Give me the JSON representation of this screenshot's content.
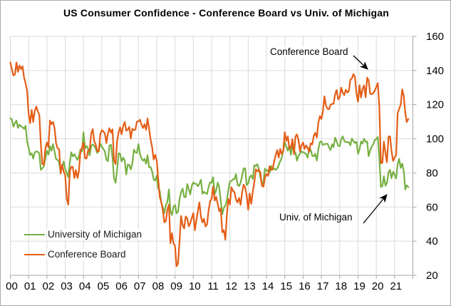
{
  "title": "US Consumer Confidence - Conference Board vs Univ. of Michigan",
  "colors": {
    "umich_green": "#76B042",
    "cb_orange": "#E45D15",
    "gridline": "#D9D9D9",
    "axis": "#A6A6A6",
    "text": "#000000"
  },
  "legend": {
    "position": "inside-lower-left",
    "items": [
      {
        "label": "University of Michigan"
      },
      {
        "label": "Conference Board"
      }
    ]
  },
  "annotations": [
    {
      "text": "Conference Board",
      "points_to": "Conference Board line near 2019 peak"
    },
    {
      "text": "Univ. of Michigan",
      "points_to": "University of Michigan line in 2020"
    }
  ],
  "chart_data": {
    "type": "line",
    "title": "US Consumer Confidence - Conference Board vs Univ. of Michigan",
    "x_frequency": "monthly",
    "x_range": [
      "2000-01",
      "2021-10"
    ],
    "xlabel": "",
    "ylabel": "",
    "xlim": [
      2000,
      2022
    ],
    "ylim": [
      20,
      160
    ],
    "y_ticks": [
      20,
      40,
      60,
      80,
      100,
      120,
      140,
      160
    ],
    "y_axis_side": "right",
    "x_tick_labels": [
      "00",
      "01",
      "02",
      "03",
      "04",
      "05",
      "06",
      "07",
      "08",
      "09",
      "10",
      "11",
      "12",
      "13",
      "14",
      "15",
      "16",
      "17",
      "18",
      "19",
      "20",
      "21"
    ],
    "grid": true,
    "legend_position": "inside-lower-left",
    "series": [
      {
        "name": "University of Michigan",
        "color": "#76B042",
        "values": [
          112,
          111.3,
          107.1,
          109.2,
          110.7,
          106.4,
          108.3,
          107.3,
          106.8,
          105.8,
          107.6,
          98.4,
          94.7,
          90.6,
          91.5,
          88.4,
          92,
          92.6,
          92.4,
          91.5,
          81.8,
          82.7,
          83.9,
          88.8,
          93,
          90.7,
          95.7,
          93,
          96.9,
          92.4,
          88.1,
          87.6,
          86.1,
          80.6,
          84.2,
          86.7,
          82.4,
          79.9,
          77.6,
          86,
          92.1,
          89.7,
          90.9,
          89.3,
          87.7,
          89.6,
          93.7,
          92.6,
          103.8,
          94.4,
          95.8,
          94.2,
          90.2,
          95.6,
          96.7,
          95.9,
          94.2,
          91.7,
          92.8,
          97.1,
          95.5,
          94.1,
          92.6,
          87.7,
          86.9,
          96,
          96.5,
          89.1,
          76.9,
          74.2,
          81.6,
          91.5,
          91.2,
          86.7,
          88.9,
          87.4,
          79.1,
          84.9,
          84.7,
          82,
          85.4,
          93.6,
          92.1,
          91.7,
          96.9,
          91.3,
          88.4,
          87.1,
          88.3,
          85.3,
          90.4,
          83.4,
          83.4,
          80.9,
          76.1,
          75.5,
          78.4,
          70.8,
          69.5,
          62.6,
          59.8,
          56.4,
          61.2,
          63,
          70.3,
          57.6,
          55.3,
          60.1,
          61.2,
          56.3,
          57.3,
          65.1,
          68.7,
          70.8,
          66,
          65.7,
          73.5,
          70.6,
          67.4,
          72.5,
          74.4,
          73.6,
          73.6,
          72.2,
          73.6,
          76,
          67.8,
          68.9,
          68.2,
          67.7,
          71.6,
          74.5,
          74.2,
          77.5,
          67.5,
          69.8,
          74.3,
          71.5,
          63.7,
          55.8,
          59.5,
          60.8,
          63.7,
          69.9,
          75,
          75.3,
          76.2,
          76.4,
          79.3,
          73.2,
          72.3,
          74.3,
          78.3,
          82.6,
          82.7,
          72.9,
          73.8,
          77.6,
          78.6,
          76.4,
          84.5,
          84.1,
          85.1,
          82.1,
          77.5,
          73.2,
          75.1,
          82.5,
          81.2,
          81.6,
          80,
          84.1,
          81.9,
          82.5,
          81.8,
          82.5,
          84.6,
          86.9,
          88.8,
          93.6,
          98.1,
          95.4,
          93,
          95.9,
          90.7,
          96.1,
          93.1,
          91.9,
          87.2,
          90,
          91.3,
          92.6,
          92,
          91.7,
          91,
          89,
          94.7,
          93.5,
          90,
          89.8,
          91.2,
          87.2,
          93.8,
          98.2,
          98.5,
          96.3,
          96.9,
          97,
          97.1,
          95,
          93.4,
          96.8,
          95.1,
          100.7,
          98.5,
          95.9,
          95.7,
          99.7,
          101.4,
          98.8,
          98,
          98.2,
          97.9,
          96.2,
          100.1,
          98.6,
          97.5,
          98.3,
          91.2,
          93.8,
          98.4,
          97.2,
          100,
          98.2,
          98.4,
          89.8,
          93.2,
          95.5,
          96.8,
          99.3,
          99.8,
          101,
          89.1,
          71.8,
          72.3,
          78.1,
          72.5,
          74.1,
          80.4,
          81.8,
          76.9,
          80.7,
          79,
          76.8,
          84.9,
          88.3,
          82.9,
          85.5,
          81.2,
          70.3,
          72.8,
          71.7
        ]
      },
      {
        "name": "Conference Board",
        "color": "#E45D15",
        "values": [
          144.7,
          140.8,
          137.1,
          137.7,
          144.7,
          139.2,
          143,
          140.8,
          142.5,
          135.8,
          132.6,
          128.3,
          114.4,
          109.2,
          116.9,
          109.9,
          116.1,
          118.9,
          116.3,
          114,
          97,
          85.3,
          84.9,
          94.6,
          97.8,
          95,
          110.7,
          108.5,
          109.9,
          106.3,
          97.4,
          94.5,
          93.7,
          79.6,
          84.9,
          80.7,
          78.8,
          64.8,
          61.4,
          81,
          83.6,
          83.5,
          77,
          81.7,
          77,
          81.1,
          92.5,
          94.8,
          97.7,
          88.5,
          88.5,
          93,
          93.1,
          102.8,
          105.7,
          98.7,
          96.7,
          92.9,
          92.6,
          102.7,
          105.1,
          104.4,
          103,
          97.5,
          103.1,
          106.2,
          103.6,
          105.5,
          87.5,
          85.2,
          98.3,
          103.8,
          106.8,
          102.7,
          107.5,
          109.8,
          104.7,
          105.4,
          107,
          100.2,
          105.9,
          105.1,
          105.3,
          110,
          110.2,
          111.2,
          108.2,
          106.3,
          108.5,
          105.3,
          111.9,
          105.6,
          99.5,
          95.2,
          87.8,
          90.6,
          87.3,
          76.4,
          65.9,
          62.8,
          58.1,
          51,
          51.9,
          58.5,
          61.4,
          38.8,
          44.7,
          38.6,
          37.4,
          25.3,
          26.9,
          40.8,
          54.8,
          49.3,
          47.4,
          54.5,
          53.4,
          48.7,
          50.6,
          53.6,
          56.5,
          46.4,
          52.3,
          57.7,
          62.7,
          54.3,
          51,
          53.2,
          48.6,
          49.9,
          57.8,
          63.4,
          64.8,
          72,
          63.8,
          66,
          61.7,
          57.6,
          59.2,
          45.2,
          46.4,
          40.9,
          55.2,
          64.8,
          61.5,
          71.6,
          69.5,
          68.7,
          64.4,
          62.7,
          65.4,
          61.3,
          68.4,
          73.1,
          71.5,
          66.7,
          58.4,
          68,
          61.9,
          69,
          74.3,
          82.1,
          81,
          81.8,
          80.2,
          72.4,
          72,
          77.5,
          79.4,
          78.3,
          83.9,
          81.7,
          82.2,
          86.4,
          90.3,
          93.4,
          89,
          94.1,
          91,
          93.1,
          103.8,
          98.8,
          101.4,
          94.3,
          94.6,
          99.8,
          91,
          101.3,
          102.6,
          99.1,
          92.6,
          96.3,
          97.8,
          94,
          96.1,
          94.7,
          92.4,
          97.4,
          96.7,
          101.8,
          103.5,
          100.8,
          109.4,
          113.3,
          111.6,
          116.1,
          124.9,
          119.4,
          117.6,
          117.3,
          120,
          120.4,
          120.6,
          126.2,
          128.6,
          123.1,
          124.3,
          130,
          127,
          125.6,
          128.8,
          127.1,
          127.9,
          134.7,
          135.3,
          137.9,
          136.4,
          126.6,
          121.7,
          131.4,
          124.2,
          129.2,
          131.3,
          124.3,
          135.8,
          134.2,
          126.3,
          126.1,
          126.8,
          128.2,
          130.4,
          132.6,
          118.8,
          85.7,
          85.9,
          98.3,
          91.7,
          86.3,
          101.3,
          101.4,
          92.9,
          87.1,
          88.9,
          90.4,
          114.9,
          117.5,
          120,
          128.9,
          125.1,
          115.2,
          109.8,
          111.6
        ]
      }
    ]
  }
}
